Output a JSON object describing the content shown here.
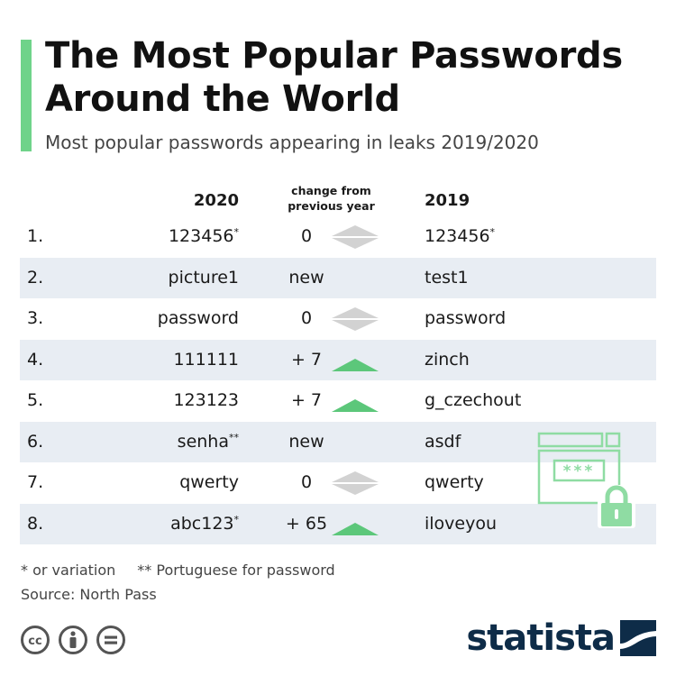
{
  "header": {
    "title": "The Most Popular Passwords Around the World",
    "subtitle": "Most popular passwords appearing in leaks 2019/2020"
  },
  "colors": {
    "accent": "#6fd38a",
    "up_arrow": "#5cc77a",
    "no_change": "#d2d2d2",
    "row_shade": "#e8edf3",
    "logo": "#0e2c48"
  },
  "chart_data": {
    "type": "table",
    "columns": [
      "2020",
      "change from previous year",
      "2019"
    ],
    "rows": [
      {
        "rank": "1.",
        "pw_2020": "123456",
        "mark_2020": "*",
        "change": "0",
        "change_indicator": "none",
        "pw_2019": "123456",
        "mark_2019": "*"
      },
      {
        "rank": "2.",
        "pw_2020": "picture1",
        "mark_2020": "",
        "change": "new",
        "change_indicator": "",
        "pw_2019": "test1",
        "mark_2019": ""
      },
      {
        "rank": "3.",
        "pw_2020": "password",
        "mark_2020": "",
        "change": "0",
        "change_indicator": "none",
        "pw_2019": "password",
        "mark_2019": ""
      },
      {
        "rank": "4.",
        "pw_2020": "111111",
        "mark_2020": "",
        "change": "+ 7",
        "change_indicator": "up",
        "pw_2019": "zinch",
        "mark_2019": ""
      },
      {
        "rank": "5.",
        "pw_2020": "123123",
        "mark_2020": "",
        "change": "+ 7",
        "change_indicator": "up",
        "pw_2019": "g_czechout",
        "mark_2019": ""
      },
      {
        "rank": "6.",
        "pw_2020": "senha",
        "mark_2020": "**",
        "change": "new",
        "change_indicator": "",
        "pw_2019": "asdf",
        "mark_2019": ""
      },
      {
        "rank": "7.",
        "pw_2020": "qwerty",
        "mark_2020": "",
        "change": "0",
        "change_indicator": "none",
        "pw_2019": "qwerty",
        "mark_2019": ""
      },
      {
        "rank": "8.",
        "pw_2020": "abc123",
        "mark_2020": "*",
        "change": "+ 65",
        "change_indicator": "up",
        "pw_2019": "iloveyou",
        "mark_2019": ""
      }
    ]
  },
  "illustration": {
    "icon": "password-window-lock-icon",
    "text": "***"
  },
  "footer": {
    "note_variation": "* or variation",
    "note_portuguese": "** Portuguese for password",
    "source": "Source: North Pass",
    "license_icons": [
      "creative-commons-icon",
      "attribution-icon",
      "no-derivatives-icon"
    ],
    "logo_text": "statista"
  }
}
